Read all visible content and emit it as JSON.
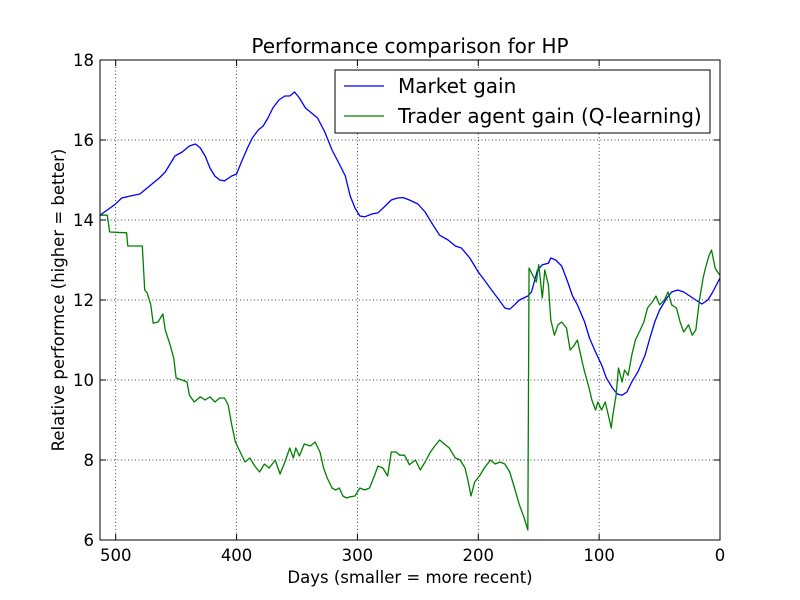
{
  "chart_data": {
    "type": "line",
    "title": "Performance comparison for HP",
    "xlabel": "Days (smaller = more recent)",
    "ylabel": "Relative performce (higher = better)",
    "xlim": [
      513,
      0
    ],
    "xaxis_inverted": true,
    "ylim": [
      6,
      18
    ],
    "xticks": [
      500,
      400,
      300,
      200,
      100,
      0
    ],
    "yticks": [
      6,
      8,
      10,
      12,
      14,
      16,
      18
    ],
    "grid": true,
    "legend": "top-right",
    "series": [
      {
        "name": "Market gain",
        "color": "#0000ff",
        "x": [
          513,
          507,
          501,
          495,
          488,
          480,
          472,
          464,
          459,
          455,
          451,
          445,
          439,
          434,
          430,
          426,
          422,
          418,
          414,
          410,
          404,
          400,
          396,
          391,
          387,
          382,
          378,
          374,
          370,
          365,
          360,
          356,
          352,
          348,
          343,
          339,
          333,
          327,
          321,
          315,
          310,
          306,
          302,
          298,
          294,
          288,
          283,
          277,
          272,
          267,
          262,
          257,
          250,
          244,
          238,
          232,
          225,
          219,
          214,
          207,
          200,
          195,
          189,
          184,
          178,
          174,
          170,
          166,
          159,
          156,
          151,
          147,
          142,
          140,
          136,
          131,
          126,
          122,
          118,
          112,
          108,
          103,
          98,
          94,
          89,
          85,
          81,
          77,
          73,
          68,
          62,
          58,
          54,
          50,
          44,
          40,
          35,
          30,
          25,
          20,
          15,
          10,
          6,
          0
        ],
        "y": [
          14.12,
          14.25,
          14.38,
          14.55,
          14.6,
          14.65,
          14.85,
          15.05,
          15.2,
          15.4,
          15.6,
          15.7,
          15.85,
          15.9,
          15.8,
          15.6,
          15.3,
          15.1,
          15.0,
          14.98,
          15.1,
          15.15,
          15.45,
          15.8,
          16.05,
          16.25,
          16.35,
          16.55,
          16.8,
          17.0,
          17.1,
          17.1,
          17.2,
          17.05,
          16.8,
          16.7,
          16.55,
          16.2,
          15.75,
          15.4,
          15.1,
          14.6,
          14.3,
          14.1,
          14.08,
          14.15,
          14.18,
          14.35,
          14.5,
          14.55,
          14.56,
          14.5,
          14.4,
          14.2,
          13.9,
          13.62,
          13.5,
          13.35,
          13.3,
          13.05,
          12.7,
          12.5,
          12.25,
          12.05,
          11.8,
          11.77,
          11.88,
          12.0,
          12.1,
          12.2,
          12.75,
          12.88,
          12.92,
          13.05,
          13.0,
          12.85,
          12.45,
          12.1,
          11.88,
          11.45,
          11.05,
          10.7,
          10.38,
          10.05,
          9.8,
          9.65,
          9.62,
          9.7,
          9.95,
          10.2,
          10.62,
          11.05,
          11.45,
          11.75,
          12.05,
          12.2,
          12.25,
          12.2,
          12.1,
          12.0,
          11.9,
          12.0,
          12.2,
          12.55
        ]
      },
      {
        "name": "Trader agent gain (Q-learning)",
        "color": "#008000",
        "x": [
          513,
          507,
          505,
          491,
          490,
          478,
          476,
          474,
          471,
          469,
          465,
          461,
          459,
          455,
          452,
          450,
          445,
          441,
          439,
          435,
          430,
          426,
          422,
          418,
          414,
          410,
          407,
          404,
          401,
          397,
          393,
          389,
          385,
          381,
          377,
          373,
          368,
          364,
          360,
          356,
          353,
          351,
          348,
          344,
          339,
          335,
          331,
          328,
          325,
          321,
          318,
          315,
          312,
          309,
          306,
          302,
          298,
          294,
          290,
          286,
          283,
          279,
          275,
          272,
          268,
          265,
          261,
          257,
          252,
          248,
          244,
          240,
          236,
          232,
          228,
          224,
          219,
          215,
          211,
          209,
          206,
          203,
          199,
          195,
          190,
          186,
          182,
          178,
          174,
          170,
          166,
          162,
          159,
          158,
          155,
          152,
          150,
          147,
          145,
          142,
          140,
          137,
          134,
          131,
          127,
          124,
          121,
          118,
          114,
          112,
          109,
          106,
          103,
          101,
          98,
          95,
          93,
          90,
          89,
          86,
          84,
          81,
          79,
          76,
          73,
          70,
          66,
          63,
          60,
          56,
          53,
          50,
          46,
          43,
          40,
          36,
          33,
          30,
          26,
          23,
          20,
          17,
          14,
          12,
          9,
          7,
          4,
          2,
          0
        ],
        "y": [
          14.12,
          14.12,
          13.7,
          13.68,
          13.35,
          13.35,
          12.25,
          12.18,
          11.88,
          11.42,
          11.45,
          11.65,
          11.25,
          10.88,
          10.55,
          10.05,
          10.0,
          9.95,
          9.62,
          9.45,
          9.58,
          9.5,
          9.58,
          9.45,
          9.55,
          9.55,
          9.38,
          8.88,
          8.45,
          8.2,
          7.95,
          8.05,
          7.85,
          7.7,
          7.9,
          7.8,
          8.0,
          7.65,
          7.95,
          8.3,
          8.05,
          8.3,
          8.1,
          8.4,
          8.35,
          8.45,
          8.2,
          7.8,
          7.55,
          7.3,
          7.25,
          7.3,
          7.1,
          7.05,
          7.08,
          7.1,
          7.3,
          7.25,
          7.3,
          7.6,
          7.85,
          7.8,
          7.6,
          8.2,
          8.2,
          8.12,
          8.12,
          7.88,
          8.0,
          7.75,
          7.95,
          8.18,
          8.35,
          8.5,
          8.4,
          8.3,
          8.05,
          8.0,
          7.8,
          7.55,
          7.1,
          7.45,
          7.6,
          7.8,
          8.0,
          7.9,
          7.95,
          7.9,
          7.7,
          7.3,
          6.88,
          6.55,
          6.25,
          12.8,
          12.62,
          12.45,
          12.88,
          12.05,
          12.75,
          12.38,
          11.5,
          11.12,
          11.38,
          11.45,
          11.3,
          10.75,
          10.85,
          11.0,
          10.45,
          10.2,
          9.88,
          9.5,
          9.25,
          9.45,
          9.25,
          9.45,
          9.2,
          8.8,
          9.05,
          9.62,
          10.3,
          9.95,
          10.25,
          10.12,
          10.62,
          11.0,
          11.25,
          11.45,
          11.8,
          11.95,
          12.1,
          11.88,
          12.0,
          12.2,
          11.88,
          11.8,
          11.45,
          11.2,
          11.38,
          11.12,
          11.25,
          12.0,
          12.55,
          12.8,
          13.12,
          13.25,
          12.8,
          12.7,
          12.62
        ]
      }
    ]
  }
}
